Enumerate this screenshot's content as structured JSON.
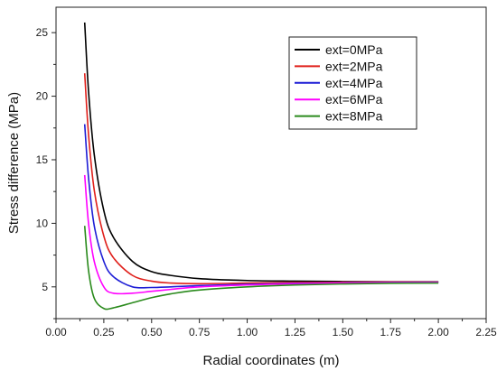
{
  "chart_data": {
    "type": "line",
    "title": "",
    "xlabel": "Radial coordinates (m)",
    "ylabel": "Stress difference (MPa)",
    "xlim": [
      0.0,
      2.25
    ],
    "ylim": [
      2.5,
      27
    ],
    "xticks": [
      0.0,
      0.25,
      0.5,
      0.75,
      1.0,
      1.25,
      1.5,
      1.75,
      2.0,
      2.25
    ],
    "xtick_labels": [
      "0.00",
      "0.25",
      "0.50",
      "0.75",
      "1.00",
      "1.25",
      "1.50",
      "1.75",
      "2.00",
      "2.25"
    ],
    "yticks": [
      5,
      10,
      15,
      20,
      25
    ],
    "ytick_labels": [
      "5",
      "10",
      "15",
      "20",
      "25"
    ],
    "grid": false,
    "legend_position": "top-right",
    "series": [
      {
        "name": "ext=0MPa",
        "color": "#000000",
        "x": [
          0.15,
          0.17,
          0.2,
          0.25,
          0.3,
          0.4,
          0.5,
          0.6,
          0.75,
          1.0,
          1.25,
          1.5,
          1.75,
          2.0
        ],
        "y": [
          25.8,
          20.4,
          15.4,
          11.0,
          8.9,
          7.0,
          6.2,
          5.9,
          5.65,
          5.5,
          5.45,
          5.42,
          5.4,
          5.4
        ]
      },
      {
        "name": "ext=2MPa",
        "color": "#e0201b",
        "x": [
          0.15,
          0.17,
          0.2,
          0.25,
          0.3,
          0.4,
          0.5,
          0.6,
          0.75,
          1.0,
          1.25,
          1.5,
          1.75,
          2.0
        ],
        "y": [
          21.8,
          17.0,
          12.6,
          9.0,
          7.3,
          5.9,
          5.45,
          5.3,
          5.25,
          5.3,
          5.35,
          5.37,
          5.38,
          5.38
        ]
      },
      {
        "name": "ext=4MPa",
        "color": "#1f1fd6",
        "x": [
          0.15,
          0.17,
          0.2,
          0.25,
          0.3,
          0.4,
          0.5,
          0.6,
          0.75,
          1.0,
          1.25,
          1.5,
          1.75,
          2.0
        ],
        "y": [
          17.8,
          13.6,
          9.8,
          7.0,
          5.8,
          5.0,
          4.95,
          5.0,
          5.1,
          5.2,
          5.28,
          5.32,
          5.35,
          5.36
        ]
      },
      {
        "name": "ext=6MPa",
        "color": "#ff00ff",
        "x": [
          0.15,
          0.17,
          0.2,
          0.25,
          0.3,
          0.4,
          0.5,
          0.6,
          0.75,
          1.0,
          1.25,
          1.5,
          1.75,
          2.0
        ],
        "y": [
          13.8,
          10.0,
          7.0,
          5.0,
          4.5,
          4.5,
          4.65,
          4.8,
          5.0,
          5.15,
          5.25,
          5.3,
          5.33,
          5.35
        ]
      },
      {
        "name": "ext=8MPa",
        "color": "#2a8a1c",
        "x": [
          0.15,
          0.17,
          0.2,
          0.25,
          0.3,
          0.4,
          0.5,
          0.6,
          0.75,
          1.0,
          1.25,
          1.5,
          1.75,
          2.0
        ],
        "y": [
          9.8,
          6.3,
          4.1,
          3.3,
          3.35,
          3.75,
          4.15,
          4.45,
          4.75,
          5.0,
          5.15,
          5.23,
          5.28,
          5.3
        ]
      }
    ]
  }
}
